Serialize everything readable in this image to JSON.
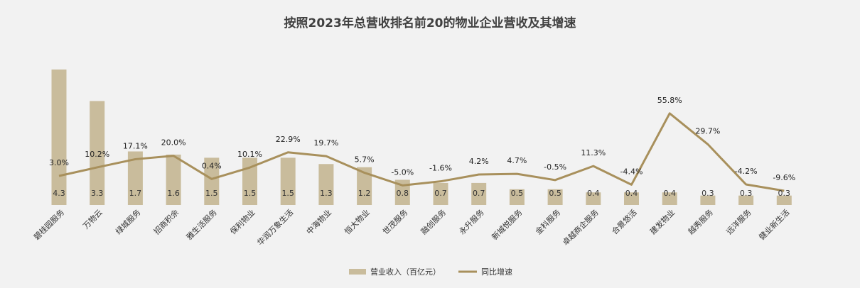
{
  "chart_data": {
    "type": "bar",
    "title": "按照2023年总营收排名前20的物业企业营收及其增速",
    "categories": [
      "碧桂园服务",
      "万物云",
      "绿城服务",
      "招商积余",
      "雅生活服务",
      "保利物业",
      "华润万象生活",
      "中海物业",
      "恒大物业",
      "世茂服务",
      "融创服务",
      "永升服务",
      "新城悦服务",
      "金科服务",
      "卓越商企服务",
      "合景悠活",
      "建发物业",
      "越秀服务",
      "远洋服务",
      "健业新生活"
    ],
    "series": [
      {
        "name": "营业收入（百亿元）",
        "kind": "bar",
        "color": "#c9bc9c",
        "values": [
          4.3,
          3.3,
          1.7,
          1.6,
          1.5,
          1.5,
          1.5,
          1.3,
          1.2,
          0.8,
          0.7,
          0.7,
          0.5,
          0.5,
          0.4,
          0.4,
          0.4,
          0.3,
          0.3,
          0.3
        ],
        "labels": [
          "4.3",
          "3.3",
          "1.7",
          "1.6",
          "1.5",
          "1.5",
          "1.5",
          "1.3",
          "1.2",
          "0.8",
          "0.7",
          "0.7",
          "0.5",
          "0.5",
          "0.4",
          "0.4",
          "0.4",
          "0.3",
          "0.3",
          "0.3"
        ]
      },
      {
        "name": "同比增速",
        "kind": "line",
        "color": "#a8905c",
        "values": [
          3.0,
          10.2,
          17.1,
          20.0,
          0.4,
          10.1,
          22.9,
          19.7,
          5.7,
          -5.0,
          -1.6,
          4.2,
          4.7,
          -0.5,
          11.3,
          -4.4,
          55.8,
          29.7,
          -4.2,
          -9.6
        ],
        "labels": [
          "3.0%",
          "10.2%",
          "17.1%",
          "20.0%",
          "0.4%",
          "10.1%",
          "22.9%",
          "19.7%",
          "5.7%",
          "-5.0%",
          "-1.6%",
          "4.2%",
          "4.7%",
          "-0.5%",
          "11.3%",
          "-4.4%",
          "55.8%",
          "29.7%",
          "-4.2%",
          "-9.6%"
        ]
      }
    ],
    "legend": {
      "placement": "bottom-center"
    },
    "grid": false
  }
}
